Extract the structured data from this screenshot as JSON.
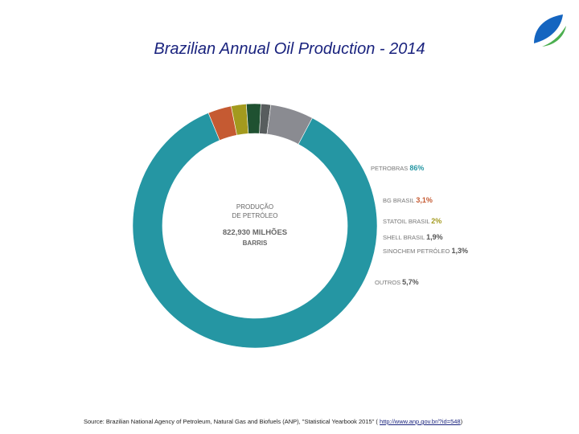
{
  "page": {
    "title": "Brazilian Annual Oil Production  - 2014",
    "source_text": "Source: Brazilian National Agency of Petroleum, Natural Gas and Biofuels (ANP), \"Statistical Yearbook 2015\" ( ",
    "source_link": "http://www.anp.gov.br/?id=548",
    "source_close": ")"
  },
  "logo": {
    "icon": "leaf-logo-icon",
    "colors": [
      "#1565c0",
      "#4caf50"
    ]
  },
  "chart_data": {
    "type": "pie",
    "style": "donut",
    "center_text": [
      "PRODUÇÃO",
      "DE PETRÓLEO",
      "822,930 MILHÕES",
      "BARRIS"
    ],
    "slices": [
      {
        "name": "PETROBRAS",
        "value_label": "86%",
        "value": 86,
        "color": "#2596a3",
        "label_color": "#2596a3"
      },
      {
        "name": "BG BRASIL",
        "value_label": "3,1%",
        "value": 3.1,
        "color": "#c55a32",
        "label_color": "#c55a32"
      },
      {
        "name": "STATOIL BRASIL",
        "value_label": "2%",
        "value": 2,
        "color": "#a39a1e",
        "label_color": "#a39a1e"
      },
      {
        "name": "SHELL BRASIL",
        "value_label": "1,9%",
        "value": 1.9,
        "color": "#1f5131",
        "label_color": "#555555"
      },
      {
        "name": "SINOCHEM PETRÓLEO",
        "value_label": "1,3%",
        "value": 1.3,
        "color": "#585d5e",
        "label_color": "#555555"
      },
      {
        "name": "OUTROS",
        "value_label": "5,7%",
        "value": 5.7,
        "color": "#8a8b91",
        "label_color": "#555555"
      }
    ]
  }
}
